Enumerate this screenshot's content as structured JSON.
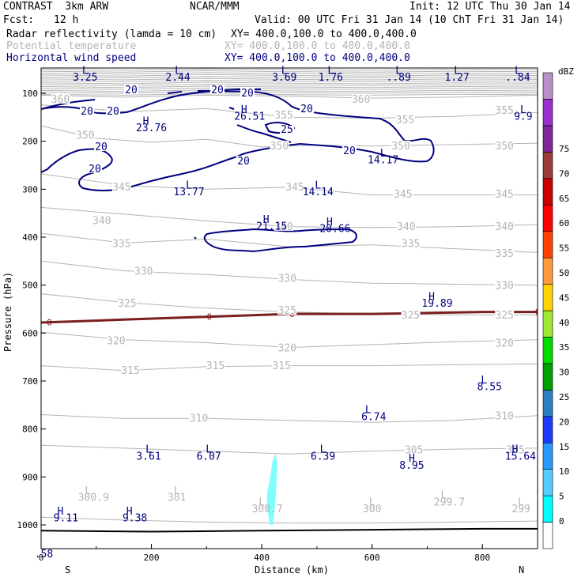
{
  "header": {
    "model": "CONTRAST  3km ARW",
    "org": "NCAR/MMM",
    "init": "Init: 12 UTC Thu 30 Jan 14",
    "fcst_label": "Fcst:",
    "fcst_value": "12 h",
    "valid": "Valid: 00 UTC Fri 31 Jan 14 (10 ChT Fri 31 Jan 14)",
    "fields": [
      {
        "name": "Radar reflectivity (lamda = 10 cm)",
        "xy": "XY= 400.0,100.0 to 400.0,400.0",
        "color": "#000000"
      },
      {
        "name": "Potential temperature",
        "xy": "XY= 400.0,100.0 to 400.0,400.0",
        "color": "#b4b4b4"
      },
      {
        "name": "Horizontal wind speed",
        "xy": "XY= 400.0,100.0 to 400.0,400.0",
        "color": "#000080"
      }
    ]
  },
  "chart_data": {
    "type": "cross-section",
    "xlabel": "Distance (km)",
    "ylabel": "Pressure (hPa)",
    "xlim": [
      0,
      900
    ],
    "ylim": [
      1050,
      50
    ],
    "x_ticks": [
      0,
      200,
      400,
      600,
      800
    ],
    "y_ticks": [
      100,
      200,
      300,
      400,
      500,
      600,
      700,
      800,
      900,
      1000
    ],
    "end_labels": {
      "left": "S",
      "right": "N"
    },
    "colorbar": {
      "units": "dBZ",
      "levels": [
        0,
        5,
        10,
        15,
        20,
        25,
        30,
        35,
        40,
        45,
        50,
        55,
        60,
        65,
        70,
        75
      ],
      "colors": [
        "#ffffff",
        "#00ffff",
        "#55ccff",
        "#2a99ff",
        "#1e3cff",
        "#2e7fbf",
        "#00a000",
        "#00dc00",
        "#a0e632",
        "#ffd200",
        "#ff9b3c",
        "#ff4100",
        "#ff0000",
        "#c80000",
        "#9b3c3c",
        "#7d2896",
        "#9932cc",
        "#b98fc7"
      ]
    },
    "theta_labels": [
      {
        "v": "360",
        "x": 35,
        "p": 115
      },
      {
        "v": "360",
        "x": 580,
        "p": 115
      },
      {
        "v": "355",
        "x": 440,
        "p": 148
      },
      {
        "v": "355",
        "x": 660,
        "p": 158
      },
      {
        "v": "355",
        "x": 840,
        "p": 138
      },
      {
        "v": "350",
        "x": 80,
        "p": 190
      },
      {
        "v": "350",
        "x": 432,
        "p": 212
      },
      {
        "v": "350",
        "x": 652,
        "p": 212
      },
      {
        "v": "350",
        "x": 840,
        "p": 212
      },
      {
        "v": "345",
        "x": 146,
        "p": 298
      },
      {
        "v": "345",
        "x": 460,
        "p": 298
      },
      {
        "v": "345",
        "x": 656,
        "p": 313
      },
      {
        "v": "345",
        "x": 840,
        "p": 313
      },
      {
        "v": "340",
        "x": 110,
        "p": 368
      },
      {
        "v": "340",
        "x": 440,
        "p": 380
      },
      {
        "v": "340",
        "x": 662,
        "p": 380
      },
      {
        "v": "340",
        "x": 840,
        "p": 380
      },
      {
        "v": "335",
        "x": 146,
        "p": 416
      },
      {
        "v": "335",
        "x": 670,
        "p": 416
      },
      {
        "v": "335",
        "x": 840,
        "p": 436
      },
      {
        "v": "330",
        "x": 186,
        "p": 473
      },
      {
        "v": "330",
        "x": 446,
        "p": 488
      },
      {
        "v": "330",
        "x": 840,
        "p": 503
      },
      {
        "v": "325",
        "x": 156,
        "p": 540
      },
      {
        "v": "325",
        "x": 446,
        "p": 555
      },
      {
        "v": "325",
        "x": 670,
        "p": 565
      },
      {
        "v": "325",
        "x": 840,
        "p": 565
      },
      {
        "v": "320",
        "x": 136,
        "p": 618
      },
      {
        "v": "320",
        "x": 446,
        "p": 633
      },
      {
        "v": "320",
        "x": 840,
        "p": 623
      },
      {
        "v": "315",
        "x": 162,
        "p": 680
      },
      {
        "v": "315",
        "x": 316,
        "p": 670
      },
      {
        "v": "315",
        "x": 436,
        "p": 670
      },
      {
        "v": "310",
        "x": 286,
        "p": 780
      },
      {
        "v": "310",
        "x": 840,
        "p": 775
      },
      {
        "v": "305",
        "x": 676,
        "p": 846
      },
      {
        "v": "305",
        "x": 860,
        "p": 846
      }
    ],
    "theta_lines": [
      {
        "level": 360,
        "points": [
          [
            0,
            104
          ],
          [
            150,
            108
          ],
          [
            300,
            104
          ],
          [
            450,
            106
          ],
          [
            600,
            110
          ],
          [
            750,
            108
          ],
          [
            900,
            104
          ]
        ]
      },
      {
        "level": 355,
        "points": [
          [
            0,
            124
          ],
          [
            150,
            138
          ],
          [
            300,
            132
          ],
          [
            450,
            150
          ],
          [
            600,
            152
          ],
          [
            750,
            148
          ],
          [
            900,
            140
          ]
        ]
      },
      {
        "level": 350,
        "points": [
          [
            0,
            168
          ],
          [
            100,
            194
          ],
          [
            200,
            202
          ],
          [
            300,
            196
          ],
          [
            400,
            212
          ],
          [
            500,
            208
          ],
          [
            600,
            210
          ],
          [
            700,
            208
          ],
          [
            800,
            206
          ],
          [
            900,
            204
          ]
        ]
      },
      {
        "level": 345,
        "points": [
          [
            0,
            268
          ],
          [
            150,
            292
          ],
          [
            300,
            300
          ],
          [
            450,
            296
          ],
          [
            600,
            312
          ],
          [
            750,
            312
          ],
          [
            900,
            312
          ]
        ]
      },
      {
        "level": 340,
        "points": [
          [
            0,
            338
          ],
          [
            150,
            352
          ],
          [
            300,
            366
          ],
          [
            450,
            378
          ],
          [
            600,
            380
          ],
          [
            750,
            378
          ],
          [
            900,
            374
          ]
        ]
      },
      {
        "level": 335,
        "points": [
          [
            0,
            392
          ],
          [
            150,
            412
          ],
          [
            300,
            404
          ],
          [
            450,
            420
          ],
          [
            600,
            416
          ],
          [
            750,
            424
          ],
          [
            900,
            432
          ]
        ]
      },
      {
        "level": 330,
        "points": [
          [
            0,
            450
          ],
          [
            150,
            470
          ],
          [
            300,
            478
          ],
          [
            450,
            488
          ],
          [
            600,
            496
          ],
          [
            750,
            498
          ],
          [
            900,
            500
          ]
        ]
      },
      {
        "level": 325,
        "points": [
          [
            0,
            518
          ],
          [
            150,
            536
          ],
          [
            300,
            548
          ],
          [
            450,
            556
          ],
          [
            600,
            560
          ],
          [
            750,
            562
          ],
          [
            900,
            562
          ]
        ]
      },
      {
        "level": 320,
        "points": [
          [
            0,
            598
          ],
          [
            150,
            614
          ],
          [
            300,
            620
          ],
          [
            450,
            630
          ],
          [
            600,
            624
          ],
          [
            750,
            618
          ],
          [
            900,
            614
          ]
        ]
      },
      {
        "level": 315,
        "points": [
          [
            0,
            668
          ],
          [
            150,
            678
          ],
          [
            300,
            670
          ],
          [
            450,
            668
          ],
          [
            600,
            668
          ],
          [
            750,
            666
          ],
          [
            900,
            664
          ]
        ]
      },
      {
        "level": 310,
        "points": [
          [
            0,
            770
          ],
          [
            150,
            778
          ],
          [
            300,
            778
          ],
          [
            450,
            782
          ],
          [
            600,
            786
          ],
          [
            750,
            782
          ],
          [
            900,
            772
          ]
        ]
      },
      {
        "level": 305,
        "points": [
          [
            0,
            834
          ],
          [
            150,
            840
          ],
          [
            300,
            846
          ],
          [
            450,
            852
          ],
          [
            600,
            846
          ],
          [
            750,
            842
          ],
          [
            900,
            840
          ]
        ]
      },
      {
        "level": 300,
        "points": [
          [
            0,
            984
          ],
          [
            150,
            990
          ],
          [
            300,
            994
          ],
          [
            450,
            996
          ],
          [
            600,
            996
          ],
          [
            750,
            994
          ],
          [
            900,
            992
          ]
        ]
      }
    ],
    "zero_line": {
      "label": "0",
      "label_x": [
        15,
        305,
        455,
        900
      ],
      "points": [
        [
          0,
          578
        ],
        [
          150,
          572
        ],
        [
          300,
          566
        ],
        [
          450,
          560
        ],
        [
          600,
          560
        ],
        [
          700,
          558
        ],
        [
          800,
          556
        ],
        [
          900,
          556
        ]
      ]
    },
    "wind20_label": "20",
    "wind25_label": "25",
    "pressure_labels": [
      {
        "t": "L",
        "x": 80,
        "p": 63
      },
      {
        "t": "3.25",
        "x": 80,
        "p": 78
      },
      {
        "t": "L",
        "x": 248,
        "p": 63
      },
      {
        "t": "2.44",
        "x": 248,
        "p": 78
      },
      {
        "t": "L",
        "x": 441,
        "p": 63
      },
      {
        "t": "3.69",
        "x": 441,
        "p": 78
      },
      {
        "t": "L",
        "x": 525,
        "p": 63
      },
      {
        "t": "1.76",
        "x": 525,
        "p": 78
      },
      {
        "t": "L",
        "x": 648,
        "p": 63
      },
      {
        "t": "..89",
        "x": 648,
        "p": 78
      },
      {
        "t": "L",
        "x": 754,
        "p": 63
      },
      {
        "t": "1.27",
        "x": 754,
        "p": 78
      },
      {
        "t": "L",
        "x": 864,
        "p": 63
      },
      {
        "t": "..84",
        "x": 864,
        "p": 78
      },
      {
        "t": "L",
        "x": 874,
        "p": 148
      },
      {
        "t": "9.9",
        "x": 874,
        "p": 163
      },
      {
        "t": "H",
        "x": 190,
        "p": 173
      },
      {
        "t": "23.76",
        "x": 200,
        "p": 188
      },
      {
        "t": "H",
        "x": 368,
        "p": 148
      },
      {
        "t": "26.51",
        "x": 378,
        "p": 163
      },
      {
        "t": "L",
        "x": 620,
        "p": 243
      },
      {
        "t": "14.17",
        "x": 620,
        "p": 258
      },
      {
        "t": "L",
        "x": 268,
        "p": 313
      },
      {
        "t": "13.77",
        "x": 268,
        "p": 328
      },
      {
        "t": "L",
        "x": 502,
        "p": 313
      },
      {
        "t": "14.14",
        "x": 502,
        "p": 328
      },
      {
        "t": "H",
        "x": 408,
        "p": 388
      },
      {
        "t": "21.15",
        "x": 418,
        "p": 403
      },
      {
        "t": "H",
        "x": 523,
        "p": 393
      },
      {
        "t": "20.66",
        "x": 533,
        "p": 408
      },
      {
        "t": "H",
        "x": 708,
        "p": 556
      },
      {
        "t": "19.89",
        "x": 718,
        "p": 571
      },
      {
        "t": "L",
        "x": 803,
        "p": 738
      },
      {
        "t": "8.55",
        "x": 813,
        "p": 753
      },
      {
        "t": "L",
        "x": 593,
        "p": 803
      },
      {
        "t": "6.74",
        "x": 603,
        "p": 818
      },
      {
        "t": "L",
        "x": 195,
        "p": 889
      },
      {
        "t": "3.61",
        "x": 195,
        "p": 904
      },
      {
        "t": "L",
        "x": 304,
        "p": 889
      },
      {
        "t": "6.07",
        "x": 304,
        "p": 904
      },
      {
        "t": "L",
        "x": 511,
        "p": 889
      },
      {
        "t": "6.39",
        "x": 511,
        "p": 904
      },
      {
        "t": "H",
        "x": 672,
        "p": 909
      },
      {
        "t": "8.95",
        "x": 672,
        "p": 924
      },
      {
        "t": "H",
        "x": 859,
        "p": 889
      },
      {
        "t": "15.64",
        "x": 869,
        "p": 904
      },
      {
        "t": "L",
        "x": 85,
        "p": 979
      },
      {
        "t": "300.9",
        "x": 95,
        "p": 994
      },
      {
        "t": "L",
        "x": 246,
        "p": 979
      },
      {
        "t": "301",
        "x": 246,
        "p": 994
      },
      {
        "t": "L",
        "x": 400,
        "p": 1004
      },
      {
        "t": "300.7",
        "x": 410,
        "p": 1019
      },
      {
        "t": "L",
        "x": 600,
        "p": 1004
      },
      {
        "t": "300",
        "x": 600,
        "p": 1019
      },
      {
        "t": "L",
        "x": 730,
        "p": 989
      },
      {
        "t": "299.7",
        "x": 740,
        "p": 1004
      },
      {
        "t": "L",
        "x": 870,
        "p": 1004
      },
      {
        "t": "299",
        "x": 870,
        "p": 1019
      },
      {
        "t": "H",
        "x": 35,
        "p": 1024
      },
      {
        "t": "9.11",
        "x": 45,
        "p": 1039
      },
      {
        "t": "H",
        "x": 160,
        "p": 1024
      },
      {
        "t": "9.38",
        "x": 170,
        "p": 1039
      },
      {
        "t": ".58",
        "x": 5,
        "p": 1117
      }
    ],
    "surface_line": [
      [
        0,
        1012
      ],
      [
        200,
        1014
      ],
      [
        400,
        1012
      ],
      [
        600,
        1010
      ],
      [
        800,
        1008
      ],
      [
        900,
        1008
      ]
    ],
    "reflectivity_cell": {
      "dbz": 10,
      "color": "#80ffff",
      "points": [
        [
          415,
          1000
        ],
        [
          409,
          960
        ],
        [
          410,
          930
        ],
        [
          414,
          910
        ],
        [
          419,
          870
        ],
        [
          425,
          850
        ],
        [
          428,
          875
        ],
        [
          426,
          930
        ],
        [
          423,
          970
        ],
        [
          420,
          1000
        ]
      ]
    }
  }
}
